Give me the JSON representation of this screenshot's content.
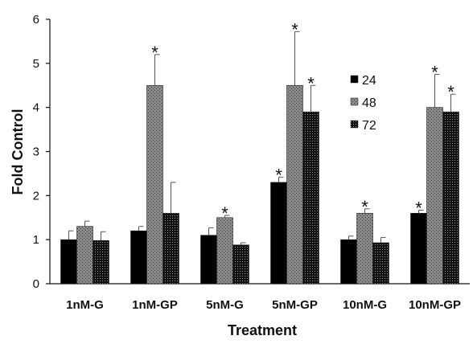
{
  "chart_data": {
    "type": "bar",
    "xlabel": "Treatment",
    "ylabel": "Fold Control",
    "ylim": [
      0,
      6
    ],
    "yticks": [
      "0",
      "1",
      "2",
      "3",
      "4",
      "5",
      "6"
    ],
    "grid": false,
    "legend_position": "right",
    "categories": [
      "1nM-G",
      "1nM-GP",
      "5nM-G",
      "5nM-GP",
      "10nM-G",
      "10nM-GP"
    ],
    "series": [
      {
        "name": "24",
        "color": "#000000",
        "pattern": "solid",
        "values": [
          1.0,
          1.2,
          1.1,
          2.3,
          1.0,
          1.6
        ],
        "errors": [
          0.2,
          0.1,
          0.17,
          0.12,
          0.08,
          0.07
        ],
        "significant": [
          false,
          false,
          false,
          true,
          false,
          true
        ]
      },
      {
        "name": "48",
        "color": "#707070",
        "pattern": "dots",
        "values": [
          1.3,
          4.5,
          1.5,
          4.5,
          1.6,
          4.0
        ],
        "errors": [
          0.12,
          0.7,
          0.05,
          1.22,
          0.1,
          0.75
        ],
        "significant": [
          false,
          true,
          true,
          true,
          true,
          true
        ]
      },
      {
        "name": "72",
        "color": "#000000",
        "pattern": "dense-dots",
        "values": [
          0.98,
          1.6,
          0.88,
          3.9,
          0.93,
          3.9
        ],
        "errors": [
          0.2,
          0.7,
          0.05,
          0.6,
          0.12,
          0.4
        ],
        "significant": [
          false,
          false,
          false,
          true,
          false,
          true
        ]
      }
    ],
    "annotation_symbol": "*"
  }
}
